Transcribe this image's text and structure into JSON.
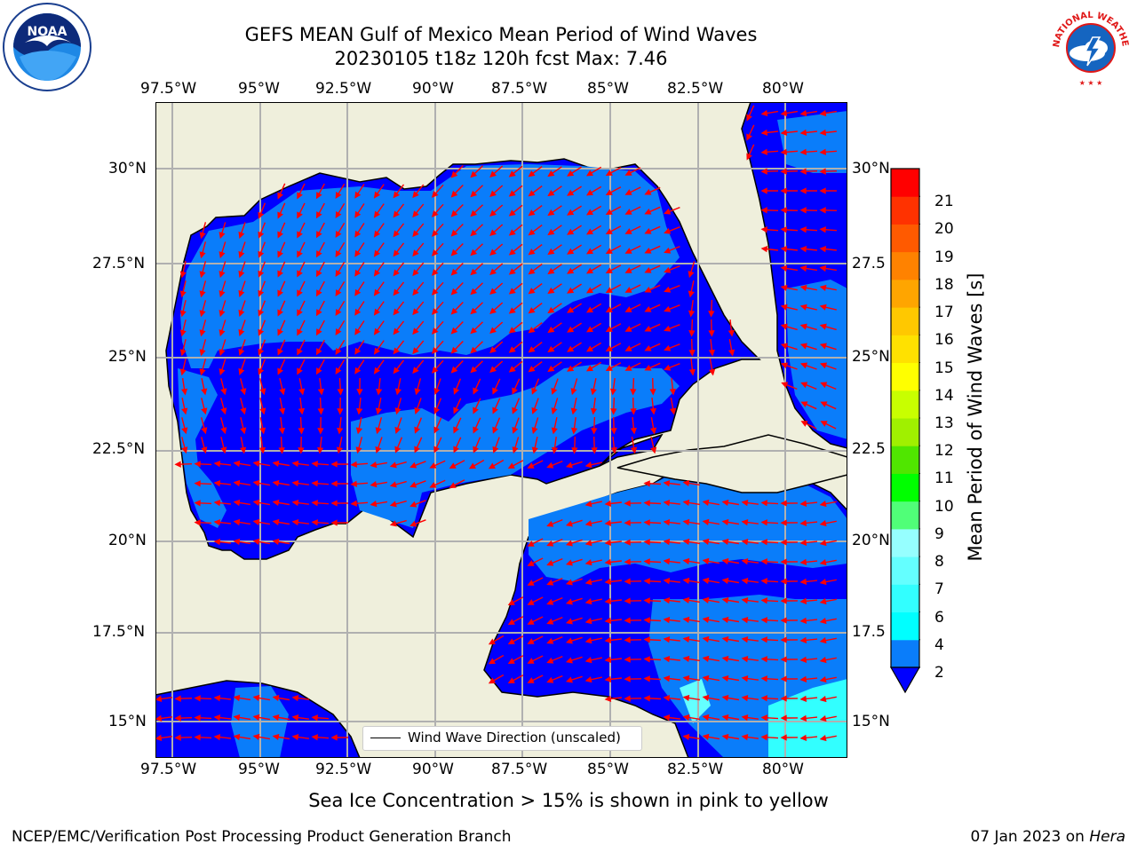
{
  "title": {
    "line1": "GEFS MEAN Gulf of Mexico Mean Period of Wind Waves",
    "line2": "20230105 t18z 120h fcst   Max: 7.46"
  },
  "logos": {
    "noaa": {
      "icon": "noaa-logo",
      "text": "NOAA"
    },
    "nws": {
      "icon": "nws-logo",
      "text": "NATIONAL WEATHER SERVICE"
    }
  },
  "map": {
    "lon_labels": [
      "97.5°W",
      "95°W",
      "92.5°W",
      "90°W",
      "87.5°W",
      "85°W",
      "82.5°W",
      "80°W"
    ],
    "lat_labels": [
      "30°N",
      "27.5°N",
      "25°N",
      "22.5°N",
      "20°N",
      "17.5°N",
      "15°N"
    ],
    "lat_labels_right": [
      "30°N",
      "27.5",
      "25°N",
      "22.5",
      "20°N",
      "17.5",
      "15°N"
    ],
    "colors": {
      "land": "#efefdc",
      "ocean_low": "#0000ff",
      "ocean_mid": "#0a7dfa",
      "ocean_high": "#32ffff",
      "vectors": "#ff0000",
      "grid": "#b0b0b0"
    }
  },
  "legend": {
    "text": "Wind Wave Direction (unscaled)"
  },
  "colorbar": {
    "label": "Mean Period of Wind Waves [s]",
    "ticks": [
      "2",
      "4",
      "6",
      "7",
      "8",
      "9",
      "10",
      "11",
      "12",
      "13",
      "14",
      "15",
      "16",
      "17",
      "18",
      "19",
      "20",
      "21"
    ],
    "colors": [
      "#0a7dfa",
      "#00ffff",
      "#32ffff",
      "#64ffff",
      "#96ffff",
      "#50ff78",
      "#00ff00",
      "#50e600",
      "#a0f000",
      "#c8ff00",
      "#ffff00",
      "#ffe100",
      "#ffc800",
      "#ffa500",
      "#ff8200",
      "#ff5a00",
      "#ff3200",
      "#ff0000"
    ]
  },
  "note": "Sea Ice Concentration > 15% is shown in pink to yellow",
  "footer": {
    "left": "NCEP/EMC/Verification Post Processing Product Generation Branch",
    "date": "07 Jan 2023 on ",
    "host": "Hera"
  }
}
